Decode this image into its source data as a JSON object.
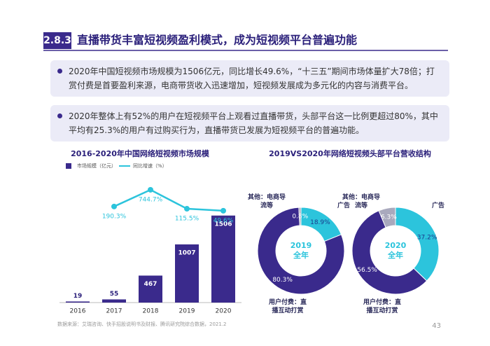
{
  "header": {
    "section": "2.8.3",
    "title": "直播带货丰富短视频盈利模式，成为短视频平台普遍功能"
  },
  "bullets": [
    "2020年中国短视频市场规模为1506亿元，同比增长49.6%，“十三五”期间市场体量扩大78倍；打赏付费是首要盈利来源，电商带货收入迅速增加，短视频发展成为多元化的内容与消费平台。",
    "2020年整体上有52%的用户在短视频平台上观看过直播带货，头部平台这一比例更超过80%，其中平均有25.3%的用户有过购买行为，直播带货已发展为短视频平台的普遍功能。"
  ],
  "chart_data": [
    {
      "type": "bar",
      "title": "2016-2020年中国网络短视频市场规模",
      "categories": [
        "2016",
        "2017",
        "2018",
        "2019",
        "2020"
      ],
      "series": [
        {
          "name": "市场规模（亿元）",
          "color": "#3a2a8c",
          "values": [
            19,
            55,
            467,
            1007,
            1506
          ]
        },
        {
          "name": "同比增速（%）",
          "color": "#2cc4dc",
          "type": "line",
          "axis": "y2",
          "values": [
            null,
            190.3,
            744.7,
            115.5,
            49.6
          ],
          "value_labels": [
            null,
            "190.3%",
            "744.7%",
            "115.5%",
            "49.6%"
          ]
        }
      ],
      "ylim": [
        0,
        1600
      ],
      "y2lim": [
        -3000,
        1000
      ]
    },
    {
      "type": "pie",
      "title": "2019VS2020年网络短视频头部平台营收结构",
      "center_label": [
        "2019",
        "全年"
      ],
      "categories": [
        "广告",
        "用户付费：直播互动打赏",
        "其他：电商导流等"
      ],
      "values": [
        18.9,
        80.3,
        0.8
      ],
      "value_labels": [
        "18.9%",
        "80.3%",
        "0.8%"
      ],
      "colors": [
        "#2cc4dc",
        "#3a2a8c",
        "#a9a9bd"
      ]
    },
    {
      "type": "pie",
      "center_label": [
        "2020",
        "全年"
      ],
      "categories": [
        "广告",
        "用户付费：直播互动打赏",
        "其他：电商导流等"
      ],
      "values": [
        37.2,
        56.5,
        6.3
      ],
      "value_labels": [
        "37.2%",
        "56.5%",
        "6.3%"
      ],
      "colors": [
        "#2cc4dc",
        "#3a2a8c",
        "#a9a9bd"
      ]
    }
  ],
  "source": "数据来源：艾瑞咨询、快手招股说明书及财报、腾讯研究院综合数据，2021.2",
  "page_number": "43"
}
